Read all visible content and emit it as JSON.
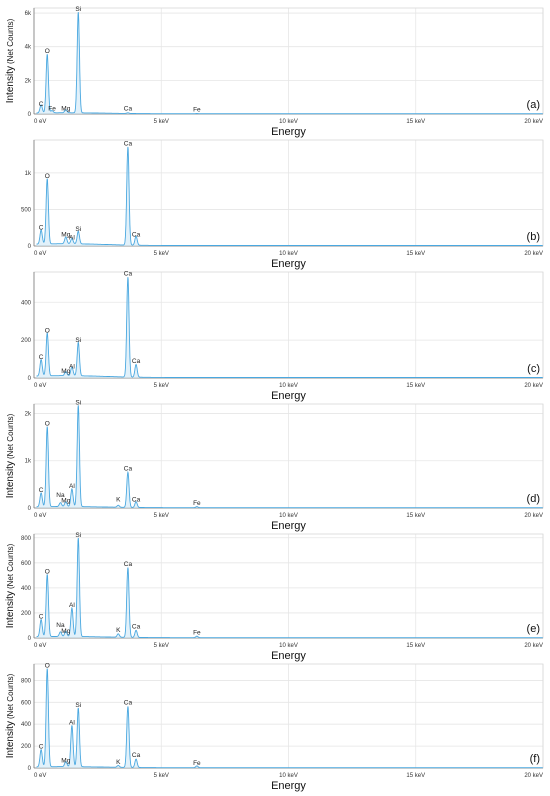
{
  "chart_data": [
    {
      "type": "line",
      "panel_label": "(a)",
      "xlabel": "Energy",
      "ylabel_main": "Intensity",
      "ylabel_sub": "(Net Counts)",
      "xlim": [
        0,
        20
      ],
      "ylim": [
        0,
        6300
      ],
      "x_ticks": [
        {
          "v": 0,
          "label": "0 eV"
        },
        {
          "v": 5,
          "label": "5 keV"
        },
        {
          "v": 10,
          "label": "10 keV"
        },
        {
          "v": 15,
          "label": "15 keV"
        },
        {
          "v": 20,
          "label": "20 keV"
        }
      ],
      "y_ticks": [
        {
          "v": 0,
          "label": "0"
        },
        {
          "v": 2000,
          "label": "2k"
        },
        {
          "v": 4000,
          "label": "4k"
        },
        {
          "v": 6000,
          "label": "6k"
        }
      ],
      "background": 60,
      "peaks": [
        {
          "element": "C",
          "x": 0.28,
          "y": 500,
          "label_y": 350
        },
        {
          "element": "O",
          "x": 0.52,
          "y": 3500,
          "label_y": 3500
        },
        {
          "element": "Fe",
          "x": 0.71,
          "y": 150,
          "label_y": 100
        },
        {
          "element": "Mg",
          "x": 1.25,
          "y": 200,
          "label_y": 100
        },
        {
          "element": "Si",
          "x": 1.74,
          "y": 6000,
          "label_y": 6000
        },
        {
          "element": "Ca",
          "x": 3.69,
          "y": 60,
          "label_y": 100
        },
        {
          "element": "Fe",
          "x": 6.4,
          "y": 30,
          "label_y": 20
        }
      ]
    },
    {
      "type": "line",
      "panel_label": "(b)",
      "xlabel": "Energy",
      "ylabel_main": "",
      "ylabel_sub": "",
      "xlim": [
        0,
        20
      ],
      "ylim": [
        0,
        1450
      ],
      "x_ticks": [
        {
          "v": 0,
          "label": "0 eV"
        },
        {
          "v": 5,
          "label": "5 keV"
        },
        {
          "v": 10,
          "label": "10 keV"
        },
        {
          "v": 15,
          "label": "15 keV"
        },
        {
          "v": 20,
          "label": "20 keV"
        }
      ],
      "y_ticks": [
        {
          "v": 0,
          "label": "0"
        },
        {
          "v": 500,
          "label": "500"
        },
        {
          "v": 1000,
          "label": "1k"
        }
      ],
      "background": 25,
      "peaks": [
        {
          "element": "C",
          "x": 0.28,
          "y": 200,
          "label_y": 200
        },
        {
          "element": "O",
          "x": 0.52,
          "y": 900,
          "label_y": 900
        },
        {
          "element": "Mg",
          "x": 1.25,
          "y": 100,
          "label_y": 100
        },
        {
          "element": "Al",
          "x": 1.49,
          "y": 80,
          "label_y": 60
        },
        {
          "element": "Si",
          "x": 1.74,
          "y": 180,
          "label_y": 180
        },
        {
          "element": "Ca",
          "x": 3.69,
          "y": 1350,
          "label_y": 1350
        },
        {
          "element": "Ca",
          "x": 4.01,
          "y": 130,
          "label_y": 100
        }
      ]
    },
    {
      "type": "line",
      "panel_label": "(c)",
      "xlabel": "Energy",
      "ylabel_main": "",
      "ylabel_sub": "",
      "xlim": [
        0,
        20
      ],
      "ylim": [
        0,
        560
      ],
      "x_ticks": [
        {
          "v": 0,
          "label": "0 eV"
        },
        {
          "v": 5,
          "label": "5 keV"
        },
        {
          "v": 10,
          "label": "10 keV"
        },
        {
          "v": 15,
          "label": "15 keV"
        },
        {
          "v": 20,
          "label": "20 keV"
        }
      ],
      "y_ticks": [
        {
          "v": 0,
          "label": "0"
        },
        {
          "v": 200,
          "label": "200"
        },
        {
          "v": 400,
          "label": "400"
        }
      ],
      "background": 10,
      "peaks": [
        {
          "element": "C",
          "x": 0.28,
          "y": 90,
          "label_y": 90
        },
        {
          "element": "O",
          "x": 0.52,
          "y": 230,
          "label_y": 230
        },
        {
          "element": "Mg",
          "x": 1.25,
          "y": 25,
          "label_y": 15
        },
        {
          "element": "Al",
          "x": 1.49,
          "y": 50,
          "label_y": 40
        },
        {
          "element": "Si",
          "x": 1.74,
          "y": 180,
          "label_y": 180
        },
        {
          "element": "Ca",
          "x": 3.69,
          "y": 530,
          "label_y": 530
        },
        {
          "element": "Ca",
          "x": 4.01,
          "y": 70,
          "label_y": 70
        }
      ]
    },
    {
      "type": "line",
      "panel_label": "(d)",
      "xlabel": "Energy",
      "ylabel_main": "Intensity",
      "ylabel_sub": "(Net Counts)",
      "xlim": [
        0,
        20
      ],
      "ylim": [
        0,
        2200
      ],
      "x_ticks": [
        {
          "v": 0,
          "label": "0 eV"
        },
        {
          "v": 5,
          "label": "5 keV"
        },
        {
          "v": 10,
          "label": "10 keV"
        },
        {
          "v": 15,
          "label": "15 keV"
        },
        {
          "v": 20,
          "label": "20 keV"
        }
      ],
      "y_ticks": [
        {
          "v": 0,
          "label": "0"
        },
        {
          "v": 1000,
          "label": "1k"
        },
        {
          "v": 2000,
          "label": "2k"
        }
      ],
      "background": 25,
      "peaks": [
        {
          "element": "C",
          "x": 0.28,
          "y": 300,
          "label_y": 300
        },
        {
          "element": "O",
          "x": 0.52,
          "y": 1700,
          "label_y": 1700
        },
        {
          "element": "Na",
          "x": 1.04,
          "y": 90,
          "label_y": 190
        },
        {
          "element": "Mg",
          "x": 1.25,
          "y": 110,
          "label_y": 70
        },
        {
          "element": "Al",
          "x": 1.49,
          "y": 380,
          "label_y": 380
        },
        {
          "element": "Si",
          "x": 1.74,
          "y": 2150,
          "label_y": 2150
        },
        {
          "element": "K",
          "x": 3.31,
          "y": 50,
          "label_y": 100
        },
        {
          "element": "Ca",
          "x": 3.69,
          "y": 750,
          "label_y": 750
        },
        {
          "element": "Ca",
          "x": 4.01,
          "y": 130,
          "label_y": 100
        },
        {
          "element": "Fe",
          "x": 6.4,
          "y": 30,
          "label_y": 20
        }
      ]
    },
    {
      "type": "line",
      "panel_label": "(e)",
      "xlabel": "Energy",
      "ylabel_main": "Intensity",
      "ylabel_sub": "(Net Counts)",
      "xlim": [
        0,
        20
      ],
      "ylim": [
        0,
        830
      ],
      "x_ticks": [
        {
          "v": 0,
          "label": "0 eV"
        },
        {
          "v": 5,
          "label": "5 keV"
        },
        {
          "v": 10,
          "label": "10 keV"
        },
        {
          "v": 15,
          "label": "15 keV"
        },
        {
          "v": 20,
          "label": "20 keV"
        }
      ],
      "y_ticks": [
        {
          "v": 0,
          "label": "0"
        },
        {
          "v": 200,
          "label": "200"
        },
        {
          "v": 400,
          "label": "400"
        },
        {
          "v": 600,
          "label": "600"
        },
        {
          "v": 800,
          "label": "800"
        }
      ],
      "background": 10,
      "peaks": [
        {
          "element": "C",
          "x": 0.28,
          "y": 140,
          "label_y": 140
        },
        {
          "element": "O",
          "x": 0.52,
          "y": 500,
          "label_y": 500
        },
        {
          "element": "Na",
          "x": 1.04,
          "y": 40,
          "label_y": 70
        },
        {
          "element": "Mg",
          "x": 1.25,
          "y": 45,
          "label_y": 25
        },
        {
          "element": "Al",
          "x": 1.49,
          "y": 230,
          "label_y": 230
        },
        {
          "element": "Si",
          "x": 1.74,
          "y": 790,
          "label_y": 790
        },
        {
          "element": "K",
          "x": 3.31,
          "y": 30,
          "label_y": 30
        },
        {
          "element": "Ca",
          "x": 3.69,
          "y": 560,
          "label_y": 560
        },
        {
          "element": "Ca",
          "x": 4.01,
          "y": 60,
          "label_y": 60
        },
        {
          "element": "Fe",
          "x": 6.4,
          "y": 15,
          "label_y": 10
        }
      ]
    },
    {
      "type": "line",
      "panel_label": "(f)",
      "xlabel": "Energy",
      "ylabel_main": "Intensity",
      "ylabel_sub": "(Net Counts)",
      "xlim": [
        0,
        20
      ],
      "ylim": [
        0,
        950
      ],
      "x_ticks": [
        {
          "v": 0,
          "label": "0 eV"
        },
        {
          "v": 5,
          "label": "5 keV"
        },
        {
          "v": 10,
          "label": "10 keV"
        },
        {
          "v": 15,
          "label": "15 keV"
        },
        {
          "v": 20,
          "label": "20 keV"
        }
      ],
      "y_ticks": [
        {
          "v": 0,
          "label": "0"
        },
        {
          "v": 200,
          "label": "200"
        },
        {
          "v": 400,
          "label": "400"
        },
        {
          "v": 600,
          "label": "600"
        },
        {
          "v": 800,
          "label": "800"
        }
      ],
      "background": 10,
      "peaks": [
        {
          "element": "C",
          "x": 0.28,
          "y": 160,
          "label_y": 160
        },
        {
          "element": "O",
          "x": 0.52,
          "y": 900,
          "label_y": 900
        },
        {
          "element": "Mg",
          "x": 1.25,
          "y": 50,
          "label_y": 30
        },
        {
          "element": "Al",
          "x": 1.49,
          "y": 380,
          "label_y": 380
        },
        {
          "element": "Si",
          "x": 1.74,
          "y": 540,
          "label_y": 540
        },
        {
          "element": "K",
          "x": 3.31,
          "y": 20,
          "label_y": 20
        },
        {
          "element": "Ca",
          "x": 3.69,
          "y": 560,
          "label_y": 560
        },
        {
          "element": "Ca",
          "x": 4.01,
          "y": 80,
          "label_y": 80
        },
        {
          "element": "Fe",
          "x": 6.4,
          "y": 20,
          "label_y": 10
        }
      ]
    }
  ],
  "colors": {
    "spectrum": "#4aa8e0",
    "fill": "#cfe7f6",
    "grid": "#e6e6e6",
    "axis": "#7a7a7a"
  }
}
